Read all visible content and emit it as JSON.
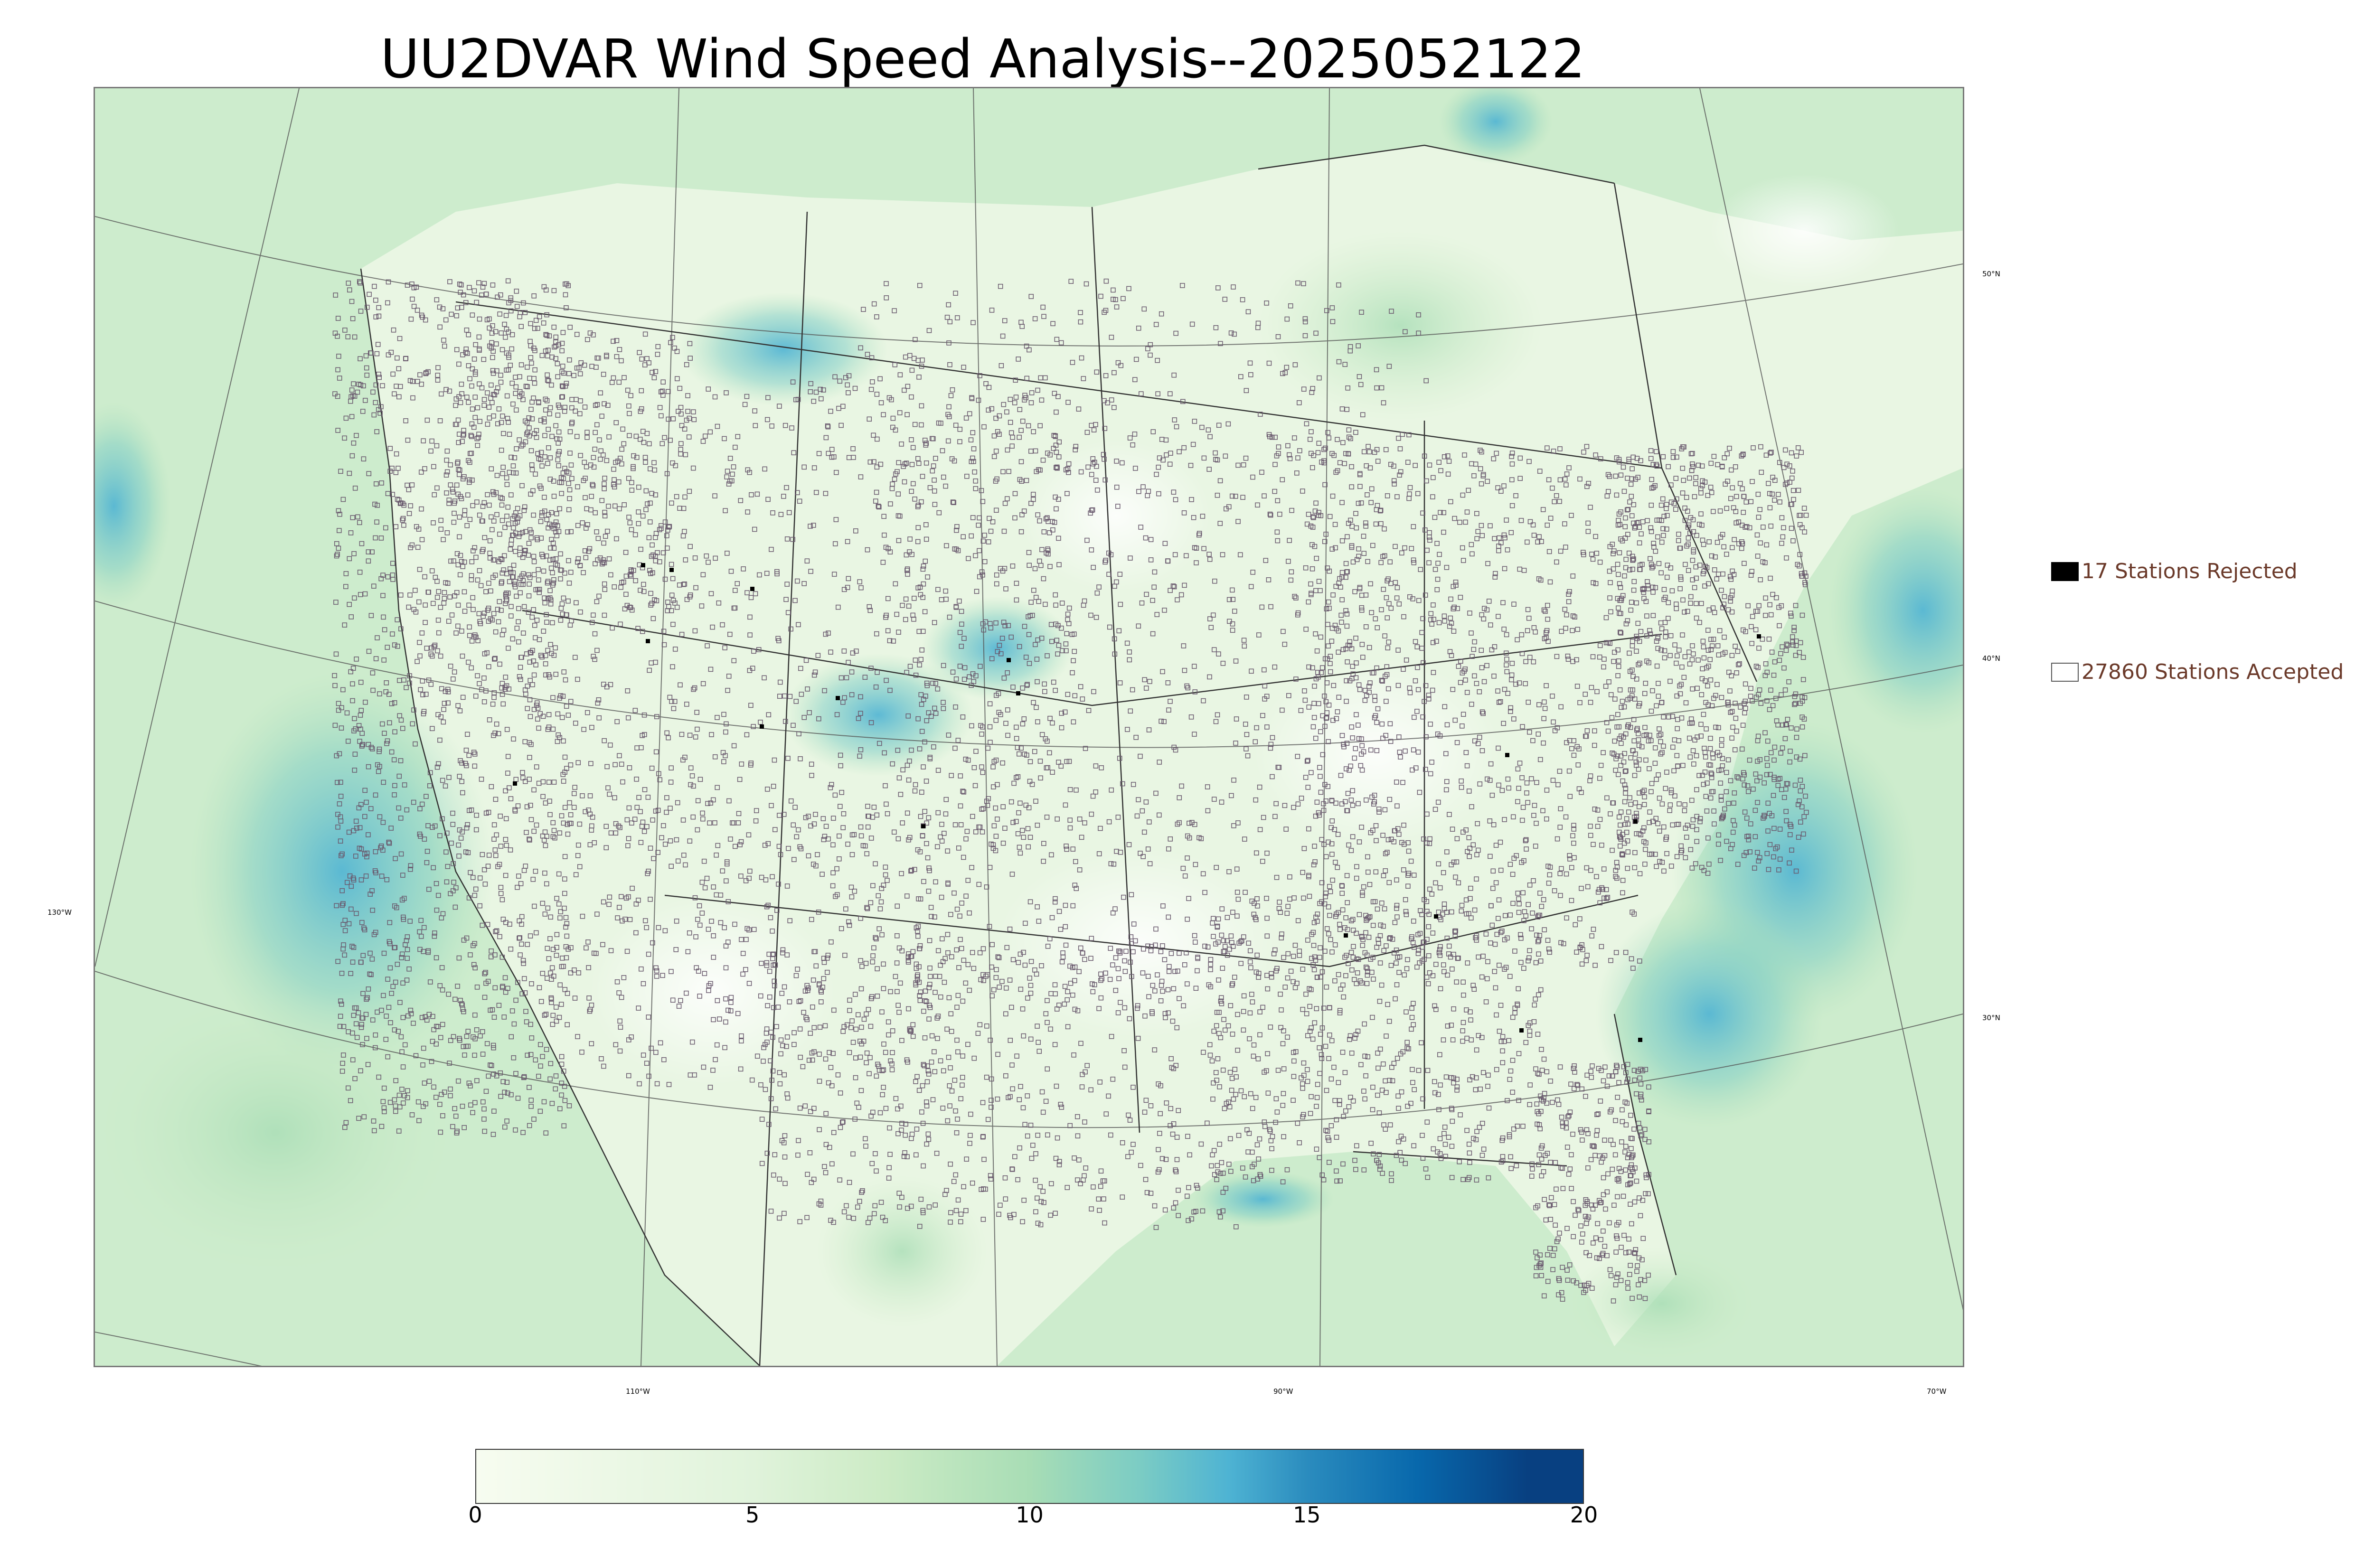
{
  "title": "UU2DVAR Wind Speed Analysis--2025052122",
  "lat_labels": [
    "50°N",
    "40°N",
    "30°N"
  ],
  "lon_labels": [
    "130°W",
    "110°W",
    "90°W",
    "70°W"
  ],
  "legend": {
    "rejected": {
      "label": "17 Stations Rejected",
      "color": "#000000"
    },
    "accepted": {
      "label": "27860 Stations Accepted",
      "color": "#ffffff"
    }
  },
  "colorbar": {
    "ticks": [
      "0",
      "5",
      "10",
      "15",
      "20"
    ],
    "min": 0,
    "max": 20,
    "colors": [
      "#f7fcf0",
      "#e0f3db",
      "#ccebc5",
      "#a8ddb5",
      "#7bccc4",
      "#4eb3d3",
      "#2b8cbe",
      "#0868ac",
      "#084081"
    ]
  },
  "colors": {
    "land_base": "#e6f4de",
    "ocean_base": "#c9ead0",
    "high_wind": "#4eb3d3"
  }
}
